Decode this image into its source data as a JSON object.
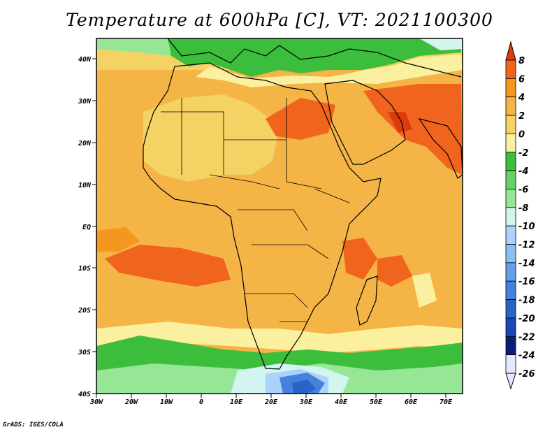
{
  "title": "Temperature at 600hPa [C], VT: 2021100300",
  "footer": "GrADS: IGES/COLA",
  "map": {
    "lat_labels": [
      "40N",
      "30N",
      "20N",
      "10N",
      "EQ",
      "10S",
      "20S",
      "30S",
      "40S"
    ],
    "lon_labels": [
      "30W",
      "20W",
      "10W",
      "0",
      "10E",
      "20E",
      "30E",
      "40E",
      "50E",
      "60E",
      "70E"
    ],
    "lon_range": [
      -30,
      75
    ],
    "lat_range": [
      -40,
      45
    ]
  },
  "colorbar": {
    "labels": [
      "8",
      "6",
      "4",
      "2",
      "0",
      "-2",
      "-4",
      "-6",
      "-8",
      "-10",
      "-12",
      "-14",
      "-16",
      "-18",
      "-20",
      "-22",
      "-24",
      "-26"
    ],
    "colors": [
      "#dc3c0a",
      "#f0641e",
      "#f5961e",
      "#f5b446",
      "#f5d264",
      "#faf0a0",
      "#3cbe3c",
      "#64d264",
      "#96e696",
      "#d2f5f0",
      "#aad2fa",
      "#8cbef0",
      "#64a0e6",
      "#4682dc",
      "#2864c8",
      "#1e46b4",
      "#0a1e78",
      "#e6e6ff"
    ]
  },
  "colors": {
    "ocean_warm": "#f5b446",
    "land_warm": "#f5d264",
    "hot": "#f0641e",
    "green": "#3cbe3c",
    "light_green": "#96e696",
    "pale": "#faf0a0",
    "cold": "#4682dc"
  }
}
